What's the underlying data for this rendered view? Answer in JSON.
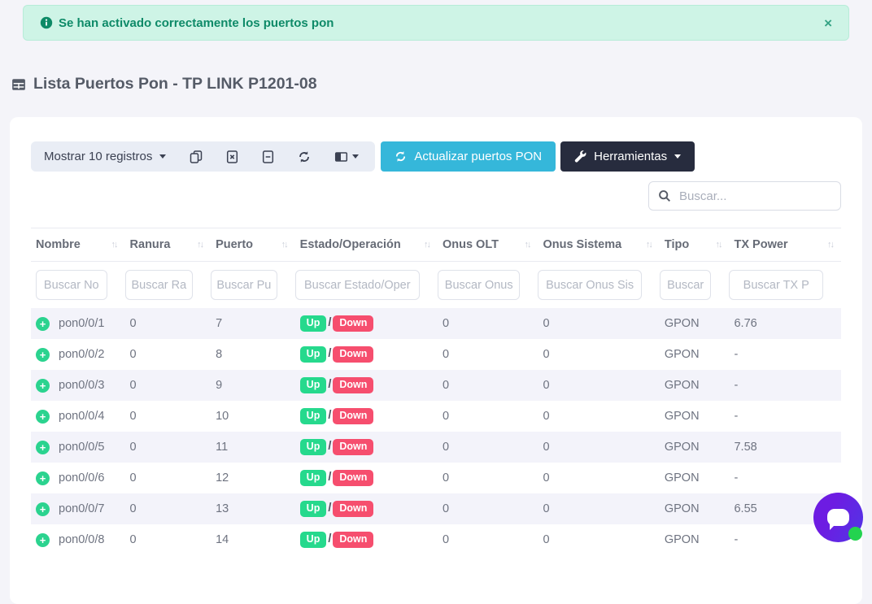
{
  "alert": {
    "message": "Se han activado correctamente los puertos pon",
    "close_label": "×",
    "icon": "info-circle-icon"
  },
  "page": {
    "title": "Lista Puertos Pon - TP LINK P1201-08",
    "icon": "table-icon"
  },
  "toolbar": {
    "show_entries_label": "Mostrar 10 registros",
    "export_icons": [
      "copy-icon",
      "excel-icon",
      "file-icon",
      "refresh-icon",
      "column-visibility-icon"
    ],
    "refresh_button_label": "Actualizar puertos PON",
    "tools_button_label": "Herramientas"
  },
  "search": {
    "placeholder": "Buscar..."
  },
  "table": {
    "columns": [
      {
        "label": "Nombre",
        "filter_placeholder": "Buscar No"
      },
      {
        "label": "Ranura",
        "filter_placeholder": "Buscar Ra"
      },
      {
        "label": "Puerto",
        "filter_placeholder": "Buscar Pu"
      },
      {
        "label": "Estado/Operación",
        "filter_placeholder": "Buscar Estado/Oper"
      },
      {
        "label": "Onus OLT",
        "filter_placeholder": "Buscar Onus"
      },
      {
        "label": "Onus Sistema",
        "filter_placeholder": "Buscar Onus Sis"
      },
      {
        "label": "Tipo",
        "filter_placeholder": "Buscar"
      },
      {
        "label": "TX Power",
        "filter_placeholder": "Buscar TX P"
      }
    ],
    "rows": [
      {
        "nombre": "pon0/0/1",
        "ranura": "0",
        "puerto": "7",
        "estado_up": "Up",
        "estado_down": "Down",
        "onus_olt": "0",
        "onus_sistema": "0",
        "tipo": "GPON",
        "tx_power": "6.76"
      },
      {
        "nombre": "pon0/0/2",
        "ranura": "0",
        "puerto": "8",
        "estado_up": "Up",
        "estado_down": "Down",
        "onus_olt": "0",
        "onus_sistema": "0",
        "tipo": "GPON",
        "tx_power": "-"
      },
      {
        "nombre": "pon0/0/3",
        "ranura": "0",
        "puerto": "9",
        "estado_up": "Up",
        "estado_down": "Down",
        "onus_olt": "0",
        "onus_sistema": "0",
        "tipo": "GPON",
        "tx_power": "-"
      },
      {
        "nombre": "pon0/0/4",
        "ranura": "0",
        "puerto": "10",
        "estado_up": "Up",
        "estado_down": "Down",
        "onus_olt": "0",
        "onus_sistema": "0",
        "tipo": "GPON",
        "tx_power": "-"
      },
      {
        "nombre": "pon0/0/5",
        "ranura": "0",
        "puerto": "11",
        "estado_up": "Up",
        "estado_down": "Down",
        "onus_olt": "0",
        "onus_sistema": "0",
        "tipo": "GPON",
        "tx_power": "7.58"
      },
      {
        "nombre": "pon0/0/6",
        "ranura": "0",
        "puerto": "12",
        "estado_up": "Up",
        "estado_down": "Down",
        "onus_olt": "0",
        "onus_sistema": "0",
        "tipo": "GPON",
        "tx_power": "-"
      },
      {
        "nombre": "pon0/0/7",
        "ranura": "0",
        "puerto": "13",
        "estado_up": "Up",
        "estado_down": "Down",
        "onus_olt": "0",
        "onus_sistema": "0",
        "tipo": "GPON",
        "tx_power": "6.55"
      },
      {
        "nombre": "pon0/0/8",
        "ranura": "0",
        "puerto": "14",
        "estado_up": "Up",
        "estado_down": "Down",
        "onus_olt": "0",
        "onus_sistema": "0",
        "tipo": "GPON",
        "tx_power": "-"
      }
    ]
  },
  "colors": {
    "accent_cyan": "#35b7da",
    "dark_button": "#272c3e",
    "alert_bg": "#cef4e6",
    "alert_text": "#0e8a68",
    "badge_up": "#26d98d",
    "badge_down": "#f64e6e",
    "row_stripe": "#f3f3fa",
    "chat_purple": "#6d1ce2",
    "chat_dot_green": "#23d34f"
  }
}
